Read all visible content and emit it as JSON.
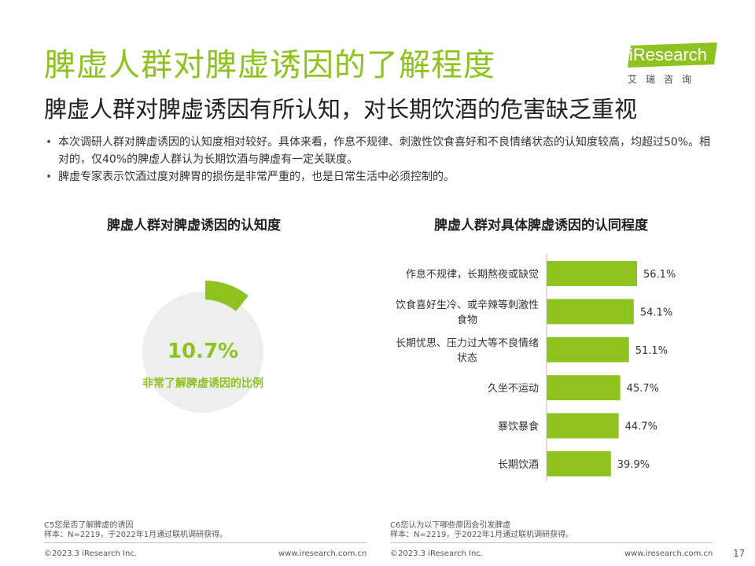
{
  "header": {
    "title": "脾虚人群对脾虚诱因的了解程度",
    "subtitle": "脾虚人群对脾虚诱因有所认知，对长期饮酒的危害缺乏重视"
  },
  "logo": {
    "wordmark": "iResearch",
    "cn": "艾瑞咨询"
  },
  "bullets": [
    "本次调研人群对脾虚诱因的认知度相对较好。具体来看，作息不规律、刺激性饮食喜好和不良情绪状态的认知度较高，均超过50%。相对的，仅40%的脾虚人群认为长期饮酒与脾虚有一定关联度。",
    "脾虚专家表示饮酒过度对脾胃的损伤是非常严重的，也是日常生活中必须控制的。"
  ],
  "colors": {
    "accent": "#8dc21f",
    "disc": "#eeeeee"
  },
  "chart_data": [
    {
      "type": "pie",
      "title": "脾虚人群对脾虚诱因的认知度",
      "values": [
        10.7
      ],
      "value_label": "10.7%",
      "label": "非常了解脾虚诱因的比例"
    },
    {
      "type": "bar",
      "orientation": "horizontal",
      "title": "脾虚人群对具体脾虚诱因的认同程度",
      "categories": [
        [
          "作息不规律，长期熬夜或缺觉"
        ],
        [
          "饮食喜好生冷、或辛辣等刺激性",
          "食物"
        ],
        [
          "长期忧思、压力过大等不良情绪",
          "状态"
        ],
        [
          "久坐不运动"
        ],
        [
          "暴饮暴食"
        ],
        [
          "长期饮酒"
        ]
      ],
      "values": [
        56.1,
        54.1,
        51.1,
        45.7,
        44.7,
        39.9
      ],
      "value_labels": [
        "56.1%",
        "54.1%",
        "51.1%",
        "45.7%",
        "44.7%",
        "39.9%"
      ],
      "xlim": [
        0,
        60
      ],
      "grid": false
    }
  ],
  "footnotes": {
    "left": [
      "C5您是否了解脾虚的诱因",
      "样本：N=2219，于2022年1月通过联机调研获得。"
    ],
    "right": [
      "C6您认为以下哪些原因会引发脾虚",
      "样本：N=2219，于2022年1月通过联机调研获得。"
    ]
  },
  "footer": {
    "copyright_left": "©2023.3 iResearch Inc.",
    "url_left": "www.iresearch.com.cn",
    "copyright_right": "©2023.3 iResearch Inc.",
    "url_right": "www.iresearch.com.cn",
    "page_number": "17"
  }
}
